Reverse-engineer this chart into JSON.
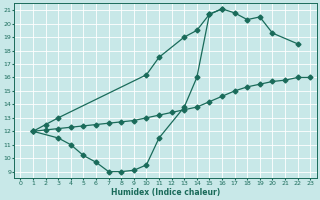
{
  "title": "",
  "xlabel": "Humidex (Indice chaleur)",
  "ylabel": "",
  "bg_color": "#c8e8e8",
  "grid_color": "#ffffff",
  "line_color": "#1a6b5a",
  "xlim": [
    -0.5,
    23.5
  ],
  "ylim": [
    8.5,
    21.5
  ],
  "xticks": [
    0,
    1,
    2,
    3,
    4,
    5,
    6,
    7,
    8,
    9,
    10,
    11,
    12,
    13,
    14,
    15,
    16,
    17,
    18,
    19,
    20,
    21,
    22,
    23
  ],
  "yticks": [
    9,
    10,
    11,
    12,
    13,
    14,
    15,
    16,
    17,
    18,
    19,
    20,
    21
  ],
  "curve1_x": [
    1,
    2,
    3,
    10,
    11,
    13,
    14,
    15,
    16,
    17,
    18,
    19,
    20,
    22
  ],
  "curve1_y": [
    12,
    12.5,
    13,
    16.2,
    17.5,
    19.0,
    19.5,
    20.7,
    21.1,
    20.8,
    20.3,
    20.5,
    19.3,
    18.5
  ],
  "curve2_x": [
    1,
    2,
    3,
    4,
    5,
    6,
    7,
    8,
    9,
    10,
    11,
    12,
    13,
    14,
    15,
    16,
    17,
    18,
    19,
    20,
    21,
    22,
    23
  ],
  "curve2_y": [
    12,
    12.1,
    12.2,
    12.3,
    12.4,
    12.5,
    12.6,
    12.7,
    12.8,
    13.0,
    13.2,
    13.4,
    13.6,
    13.8,
    14.2,
    14.6,
    15.0,
    15.3,
    15.5,
    15.7,
    15.8,
    16.0,
    16.0
  ],
  "curve3_x": [
    1,
    3,
    4,
    5,
    6,
    7,
    8,
    9,
    10,
    11,
    13,
    14,
    15,
    16
  ],
  "curve3_y": [
    12,
    11.5,
    11.0,
    10.2,
    9.7,
    9.0,
    9.0,
    9.1,
    9.5,
    11.5,
    13.8,
    16.0,
    20.7,
    21.1
  ],
  "marker": "D",
  "markersize": 2.5,
  "linewidth": 0.9
}
